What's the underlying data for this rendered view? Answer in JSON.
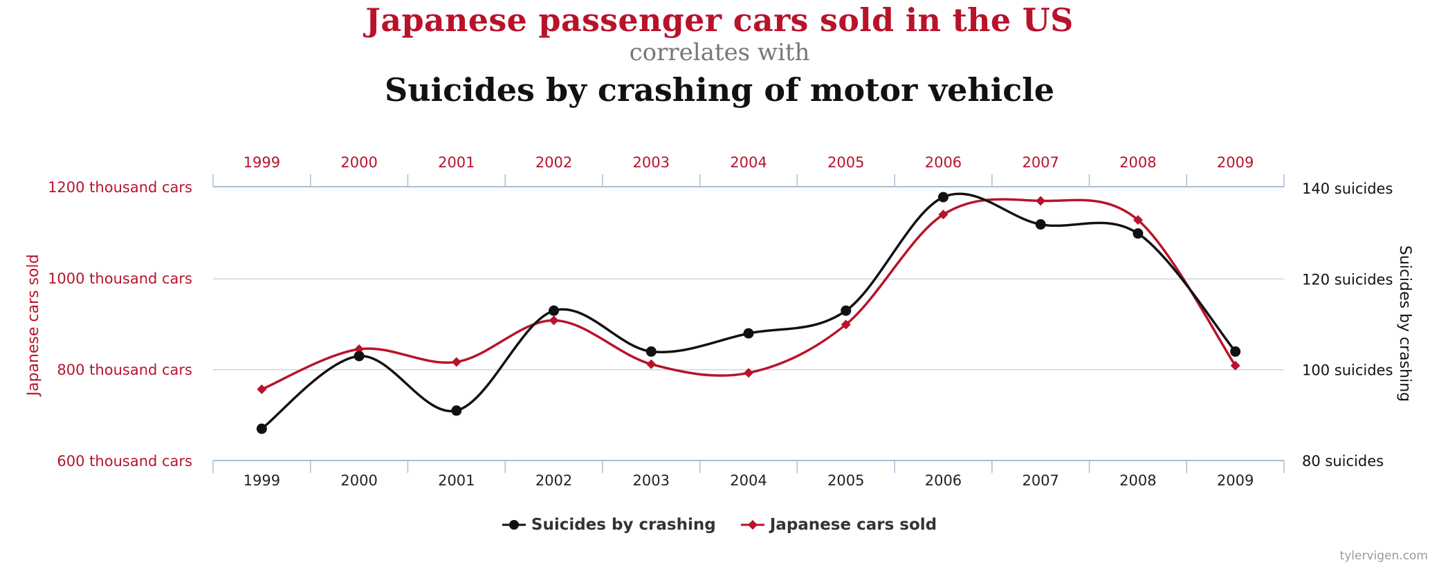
{
  "title": "Japanese passenger cars sold in the US",
  "connector": "correlates with",
  "subtitle": "Suicides by crashing of motor vehicle",
  "watermark": "tylervigen.com",
  "colors": {
    "cars": "#b8132b",
    "suicides": "#111111",
    "grid": "#c8d6e6",
    "axis": "#a9bdd6"
  },
  "chart_data": {
    "type": "line",
    "x": [
      "1999",
      "2000",
      "2001",
      "2002",
      "2003",
      "2004",
      "2005",
      "2006",
      "2007",
      "2008",
      "2009"
    ],
    "series": [
      {
        "name": "Suicides by crashing",
        "axis": "right",
        "marker": "circle",
        "values": [
          87,
          103,
          91,
          113,
          104,
          108,
          113,
          138,
          132,
          130,
          104
        ]
      },
      {
        "name": "Japanese cars sold",
        "axis": "left",
        "marker": "diamond",
        "values": [
          756,
          844,
          816,
          907,
          811,
          792,
          898,
          1139,
          1169,
          1127,
          808
        ]
      }
    ],
    "ylabel_left": "Japanese cars sold",
    "ylabel_right": "Suicides by crashing",
    "y_left_ticks": [
      "600 thousand cars",
      "800 thousand cars",
      "1000 thousand cars",
      "1200 thousand cars"
    ],
    "y_left_tick_values": [
      600,
      800,
      1000,
      1200
    ],
    "y_right_ticks": [
      "80 suicides",
      "100 suicides",
      "120 suicides",
      "140 suicides"
    ],
    "y_right_tick_values": [
      80,
      100,
      120,
      140
    ],
    "ylim_left": [
      600,
      1300
    ],
    "ylim_right": [
      80,
      140
    ],
    "grid": true,
    "legend": "bottom-center"
  }
}
